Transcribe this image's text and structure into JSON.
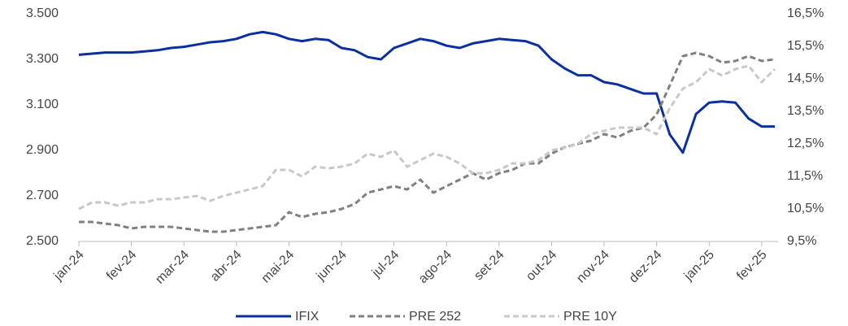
{
  "chart_data": {
    "type": "line",
    "categories": [
      "jan-24",
      null,
      null,
      null,
      "fev-24",
      null,
      null,
      null,
      "mar-24",
      null,
      null,
      null,
      "abr-24",
      null,
      null,
      null,
      "mai-24",
      null,
      null,
      null,
      "jun-24",
      null,
      null,
      null,
      "jul-24",
      null,
      null,
      null,
      "ago-24",
      null,
      null,
      null,
      "set-24",
      null,
      null,
      null,
      "out-24",
      null,
      null,
      null,
      "nov-24",
      null,
      null,
      null,
      "dez-24",
      null,
      null,
      null,
      "jan-25",
      null,
      null,
      null,
      "fev-25",
      null
    ],
    "series": [
      {
        "name": "IFIX",
        "color": "#0a2f9e",
        "dash": false,
        "axis": "y",
        "values": [
          3320,
          3325,
          3330,
          3330,
          3330,
          3335,
          3340,
          3350,
          3355,
          3365,
          3375,
          3380,
          3390,
          3410,
          3420,
          3410,
          3390,
          3380,
          3390,
          3385,
          3350,
          3340,
          3310,
          3300,
          3350,
          3370,
          3390,
          3380,
          3360,
          3350,
          3370,
          3380,
          3390,
          3385,
          3380,
          3360,
          3300,
          3260,
          3230,
          3230,
          3200,
          3190,
          3170,
          3150,
          3150,
          2970,
          2890,
          3060,
          3110,
          3115,
          3110,
          3040,
          3005,
          3005
        ]
      },
      {
        "name": "PRE 252",
        "color": "#808080",
        "dash": true,
        "axis": "y2",
        "values": [
          10.1,
          10.1,
          10.05,
          10.0,
          9.9,
          9.95,
          9.95,
          9.95,
          9.9,
          9.85,
          9.8,
          9.8,
          9.85,
          9.9,
          9.95,
          10.0,
          10.4,
          10.25,
          10.35,
          10.4,
          10.5,
          10.65,
          11.0,
          11.1,
          11.2,
          11.1,
          11.4,
          11.0,
          11.2,
          11.4,
          11.6,
          11.4,
          11.6,
          11.7,
          11.9,
          11.9,
          12.2,
          12.4,
          12.5,
          12.6,
          12.8,
          12.7,
          12.9,
          13.0,
          13.4,
          14.3,
          15.2,
          15.3,
          15.2,
          15.0,
          15.05,
          15.2,
          15.05,
          15.1
        ]
      },
      {
        "name": "PRE 10Y",
        "color": "#c8c8c8",
        "dash": true,
        "axis": "y2",
        "values": [
          10.5,
          10.7,
          10.7,
          10.6,
          10.7,
          10.7,
          10.8,
          10.8,
          10.85,
          10.9,
          10.75,
          10.9,
          11.0,
          11.1,
          11.2,
          11.7,
          11.7,
          11.5,
          11.8,
          11.75,
          11.8,
          11.9,
          12.2,
          12.1,
          12.3,
          11.8,
          12.0,
          12.2,
          12.1,
          11.9,
          11.6,
          11.6,
          11.7,
          11.9,
          11.9,
          12.0,
          12.3,
          12.4,
          12.5,
          12.8,
          12.9,
          13.0,
          13.0,
          13.0,
          12.8,
          13.6,
          14.2,
          14.4,
          14.8,
          14.6,
          14.8,
          14.9,
          14.4,
          14.8
        ]
      }
    ],
    "ylim": [
      2500,
      3500
    ],
    "yticks": [
      {
        "value": 2500,
        "label": "2.500"
      },
      {
        "value": 2700,
        "label": "2.700"
      },
      {
        "value": 2900,
        "label": "2.900"
      },
      {
        "value": 3100,
        "label": "3.100"
      },
      {
        "value": 3300,
        "label": "3.300"
      },
      {
        "value": 3500,
        "label": "3.500"
      }
    ],
    "y2lim": [
      9.5,
      16.5
    ],
    "y2ticks": [
      {
        "value": 9.5,
        "label": "9,5%"
      },
      {
        "value": 10.5,
        "label": "10,5%"
      },
      {
        "value": 11.5,
        "label": "11,5%"
      },
      {
        "value": 12.5,
        "label": "12,5%"
      },
      {
        "value": 13.5,
        "label": "13,5%"
      },
      {
        "value": 14.5,
        "label": "14,5%"
      },
      {
        "value": 15.5,
        "label": "15,5%"
      },
      {
        "value": 16.5,
        "label": "16,5%"
      }
    ],
    "legend": "bottom"
  }
}
